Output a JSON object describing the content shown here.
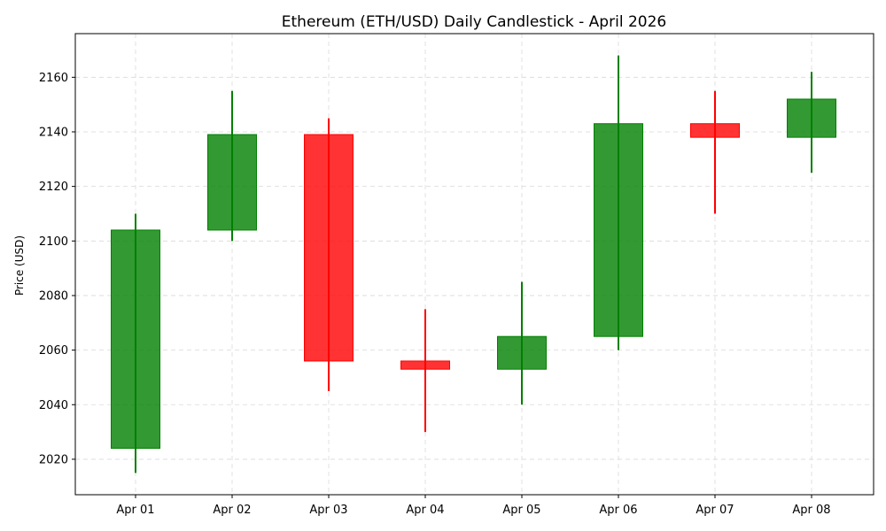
{
  "chart_data": {
    "type": "candlestick",
    "title": "Ethereum (ETH/USD) Daily Candlestick - April 2026",
    "xlabel": "",
    "ylabel": "Price (USD)",
    "ylim": [
      2007,
      2176
    ],
    "yticks": [
      2020,
      2040,
      2060,
      2080,
      2100,
      2120,
      2140,
      2160
    ],
    "grid": true,
    "colors": {
      "up": "#008000",
      "down": "#ff0000"
    },
    "categories": [
      "Apr 01",
      "Apr 02",
      "Apr 03",
      "Apr 04",
      "Apr 05",
      "Apr 06",
      "Apr 07",
      "Apr 08"
    ],
    "open": [
      2024,
      2104,
      2139,
      2056,
      2053,
      2065,
      2143,
      2138
    ],
    "high": [
      2110,
      2155,
      2145,
      2075,
      2085,
      2168,
      2155,
      2162
    ],
    "low": [
      2015,
      2100,
      2045,
      2030,
      2040,
      2060,
      2110,
      2125
    ],
    "close": [
      2104,
      2139,
      2056,
      2053,
      2065,
      2143,
      2138,
      2152
    ]
  }
}
